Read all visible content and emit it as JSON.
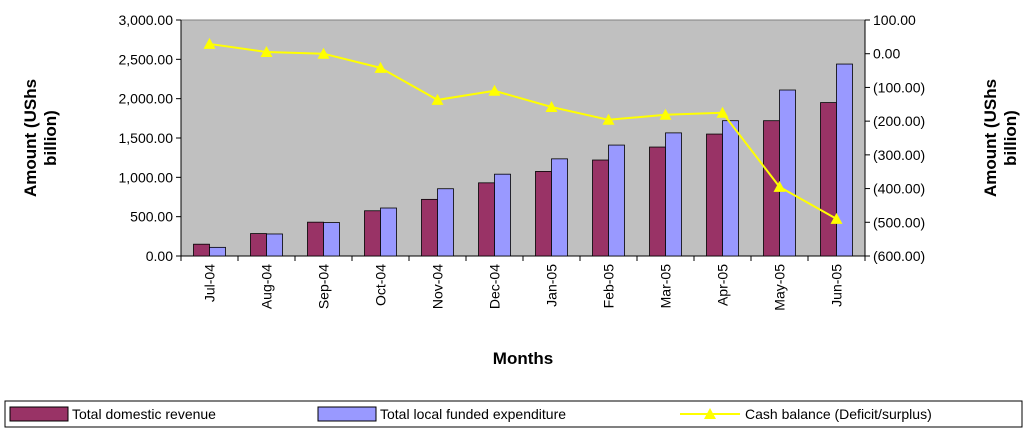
{
  "chart_data": {
    "type": "bar_line",
    "x_label": "Months",
    "y_label": "Amount (UShs billion)",
    "y2_label": "Amount (UShs billion)",
    "categories": [
      "Jul-04",
      "Aug-04",
      "Sep-04",
      "Oct-04",
      "Nov-04",
      "Dec-04",
      "Jan-05",
      "Feb-05",
      "Mar-05",
      "Apr-05",
      "May-05",
      "Jun-05"
    ],
    "series": [
      {
        "name": "Total domestic revenue",
        "type": "bar",
        "color": "#993366",
        "values": [
          150,
          285,
          430,
          575,
          720,
          930,
          1075,
          1220,
          1385,
          1550,
          1720,
          1950
        ]
      },
      {
        "name": "Total local funded expenditure",
        "type": "bar",
        "color": "#9999ff",
        "values": [
          110,
          280,
          425,
          610,
          855,
          1040,
          1235,
          1410,
          1565,
          1720,
          2110,
          2440
        ]
      },
      {
        "name": "Cash balance (Deficit/surplus)",
        "type": "line",
        "axis": "y2",
        "color": "#ffff00",
        "values": [
          29,
          5,
          0,
          -42,
          -137,
          -110,
          -158,
          -196,
          -181,
          -175,
          -395,
          -490
        ]
      }
    ],
    "ylim": [
      0,
      3000
    ],
    "yticks": [
      {
        "value": 0,
        "label": "0.00"
      },
      {
        "value": 500,
        "label": "500.00"
      },
      {
        "value": 1000,
        "label": "1,000.00"
      },
      {
        "value": 1500,
        "label": "1,500.00"
      },
      {
        "value": 2000,
        "label": "2,000.00"
      },
      {
        "value": 2500,
        "label": "2,500.00"
      },
      {
        "value": 3000,
        "label": "3,000.00"
      }
    ],
    "y2lim": [
      -600,
      100
    ],
    "y2ticks": [
      {
        "value": -600,
        "label": "(600.00)"
      },
      {
        "value": -500,
        "label": "(500.00)"
      },
      {
        "value": -400,
        "label": "(400.00)"
      },
      {
        "value": -300,
        "label": "(300.00)"
      },
      {
        "value": -200,
        "label": "(200.00)"
      },
      {
        "value": -100,
        "label": "(100.00)"
      },
      {
        "value": 0,
        "label": "0.00"
      },
      {
        "value": 100,
        "label": "100.00"
      }
    ],
    "grid": false,
    "legend": "bottom"
  }
}
